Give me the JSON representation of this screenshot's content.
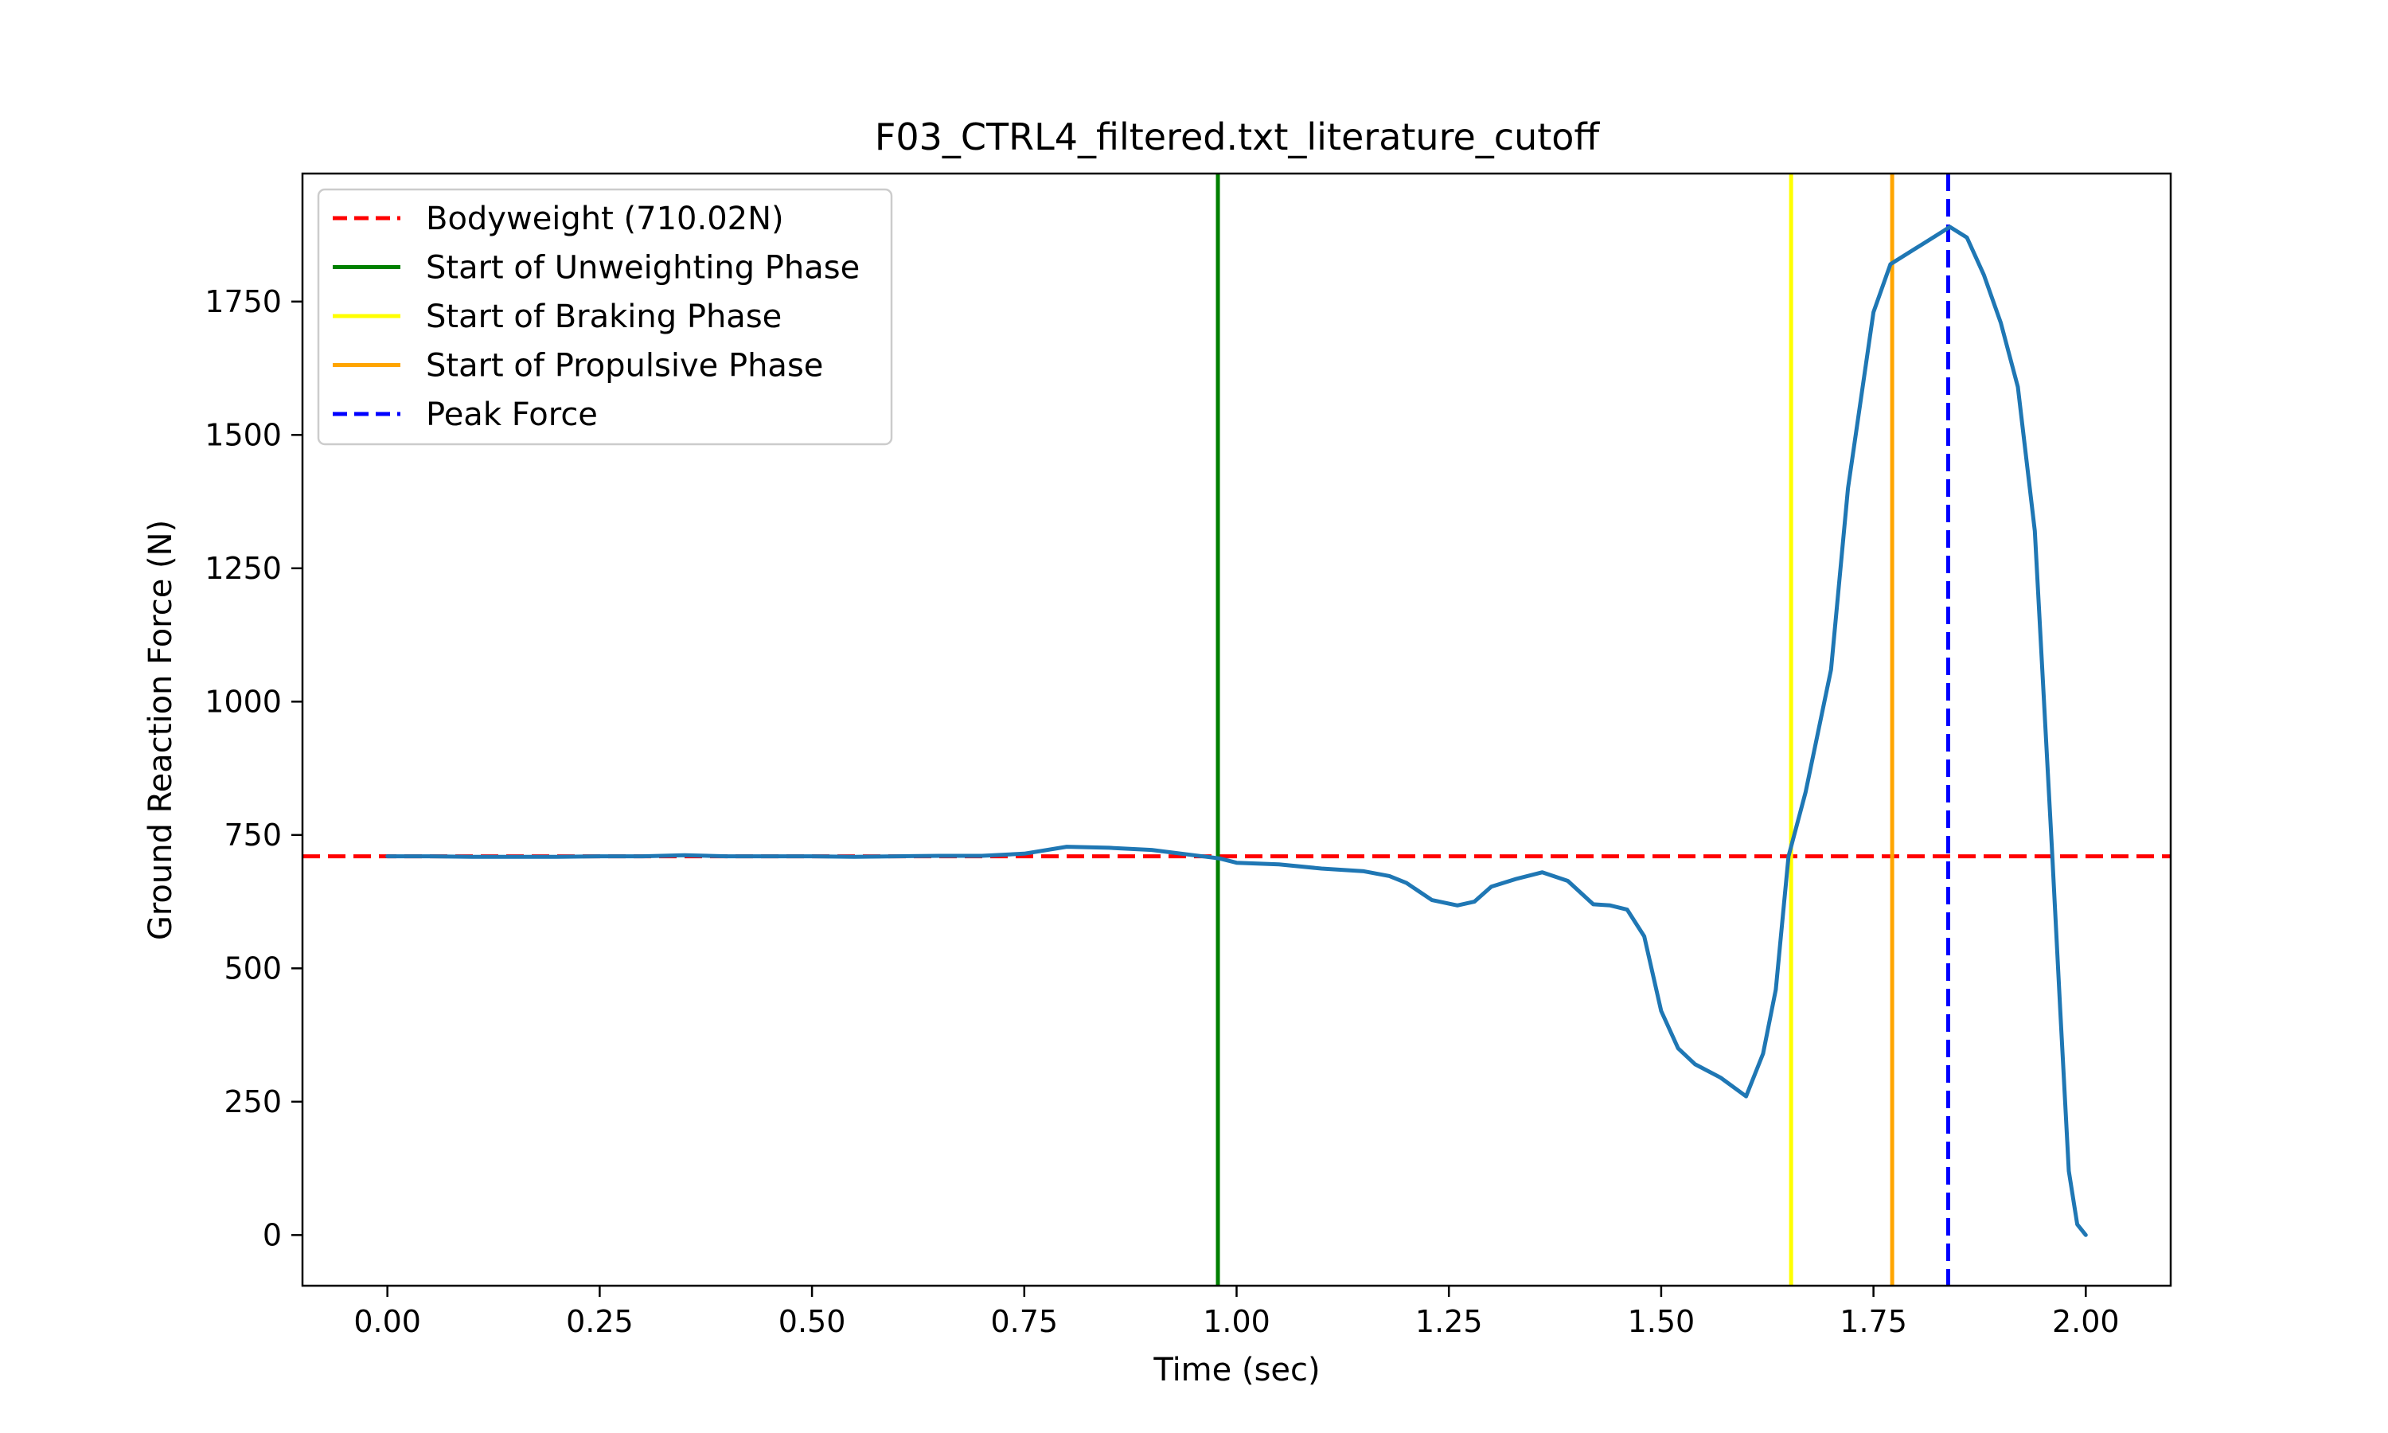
{
  "chart_data": {
    "type": "line",
    "title": "F03_CTRL4_filtered.txt_literature_cutoff",
    "xlabel": "Time (sec)",
    "ylabel": "Ground Reaction Force (N)",
    "xlim": [
      -0.1,
      2.1
    ],
    "ylim": [
      -95,
      1990
    ],
    "xticks": [
      0.0,
      0.25,
      0.5,
      0.75,
      1.0,
      1.25,
      1.5,
      1.75,
      2.0
    ],
    "xtick_labels": [
      "0.00",
      "0.25",
      "0.50",
      "0.75",
      "1.00",
      "1.25",
      "1.50",
      "1.75",
      "2.00"
    ],
    "yticks": [
      0,
      250,
      500,
      750,
      1000,
      1250,
      1500,
      1750
    ],
    "ytick_labels": [
      "0",
      "250",
      "500",
      "750",
      "1000",
      "1250",
      "1500",
      "1750"
    ],
    "grid": false,
    "legend_position": "top-left",
    "series": [
      {
        "color": "#1f77b4",
        "x": [
          0.0,
          0.05,
          0.1,
          0.15,
          0.2,
          0.25,
          0.3,
          0.35,
          0.4,
          0.45,
          0.5,
          0.55,
          0.6,
          0.65,
          0.7,
          0.75,
          0.8,
          0.85,
          0.9,
          0.95,
          0.98,
          1.0,
          1.05,
          1.1,
          1.15,
          1.18,
          1.2,
          1.23,
          1.26,
          1.28,
          1.3,
          1.33,
          1.36,
          1.39,
          1.42,
          1.44,
          1.46,
          1.48,
          1.5,
          1.52,
          1.54,
          1.57,
          1.6,
          1.62,
          1.635,
          1.65,
          1.67,
          1.7,
          1.72,
          1.75,
          1.77,
          1.8,
          1.83,
          1.84,
          1.86,
          1.88,
          1.9,
          1.92,
          1.94,
          1.96,
          1.97,
          1.98,
          1.99,
          2.0
        ],
        "y": [
          710,
          710,
          709,
          709,
          709,
          710,
          710,
          712,
          710,
          710,
          710,
          709,
          710,
          711,
          711,
          715,
          728,
          726,
          722,
          712,
          706,
          698,
          695,
          687,
          682,
          673,
          660,
          628,
          618,
          625,
          653,
          668,
          680,
          664,
          620,
          618,
          610,
          560,
          420,
          350,
          320,
          295,
          260,
          340,
          460,
          710,
          830,
          1060,
          1400,
          1730,
          1820,
          1850,
          1880,
          1890,
          1870,
          1800,
          1710,
          1590,
          1320,
          730,
          420,
          120,
          20,
          0
        ]
      }
    ],
    "reference_lines": [
      {
        "orientation": "horizontal",
        "value": 710.02,
        "color": "#ff0000",
        "style": "dashed",
        "label": "Bodyweight (710.02N)"
      },
      {
        "orientation": "vertical",
        "value": 0.978,
        "color": "#008000",
        "style": "solid",
        "label": "Start of Unweighting Phase"
      },
      {
        "orientation": "vertical",
        "value": 1.653,
        "color": "#ffff00",
        "style": "solid",
        "label": "Start of Braking Phase"
      },
      {
        "orientation": "vertical",
        "value": 1.772,
        "color": "#ffa500",
        "style": "solid",
        "label": "Start of Propulsive Phase"
      },
      {
        "orientation": "vertical",
        "value": 1.838,
        "color": "#0000ff",
        "style": "dashed",
        "label": "Peak Force"
      }
    ]
  }
}
